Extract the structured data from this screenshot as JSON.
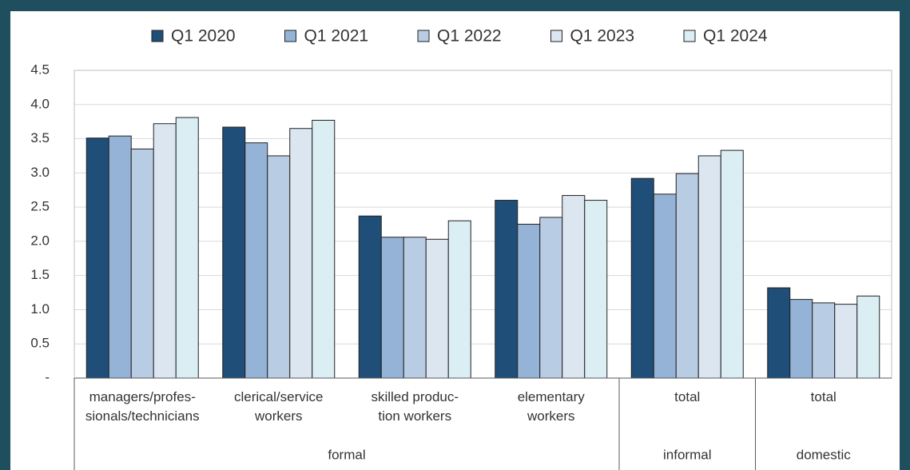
{
  "chart_data": {
    "type": "bar",
    "groups": [
      {
        "label": "formal",
        "categories": [
          [
            "managers/profes-",
            "sionals/technicians"
          ],
          [
            "clerical/service",
            "workers"
          ],
          [
            "skilled produc-",
            "tion workers"
          ],
          [
            "elementary",
            "workers"
          ]
        ]
      },
      {
        "label": "informal",
        "categories": [
          [
            "total"
          ]
        ]
      },
      {
        "label": "domestic",
        "categories": [
          [
            "total"
          ]
        ]
      }
    ],
    "series": [
      {
        "name": "Q1 2020",
        "color": "#1f4e79",
        "values": [
          3.51,
          3.67,
          2.37,
          2.6,
          2.92,
          1.32
        ]
      },
      {
        "name": "Q1 2021",
        "color": "#95b3d7",
        "values": [
          3.54,
          3.44,
          2.06,
          2.25,
          2.69,
          1.15
        ]
      },
      {
        "name": "Q1 2022",
        "color": "#b8cce4",
        "values": [
          3.35,
          3.25,
          2.06,
          2.35,
          2.99,
          1.1
        ]
      },
      {
        "name": "Q1 2023",
        "color": "#dce6f1",
        "values": [
          3.72,
          3.65,
          2.03,
          2.67,
          3.25,
          1.08
        ]
      },
      {
        "name": "Q1 2024",
        "color": "#daeef3",
        "values": [
          3.81,
          3.77,
          2.3,
          2.6,
          3.33,
          1.2
        ]
      }
    ],
    "ylim": [
      0,
      4.5
    ],
    "yticks": [
      {
        "value": 0,
        "label": "-"
      },
      0.5,
      {
        "value": 1,
        "label": "1.0"
      },
      1.5,
      {
        "value": 2,
        "label": "2.0"
      },
      2.5,
      {
        "value": 3,
        "label": "3.0"
      },
      3.5,
      {
        "value": 4,
        "label": "4.0"
      },
      4.5
    ],
    "grid": true
  }
}
